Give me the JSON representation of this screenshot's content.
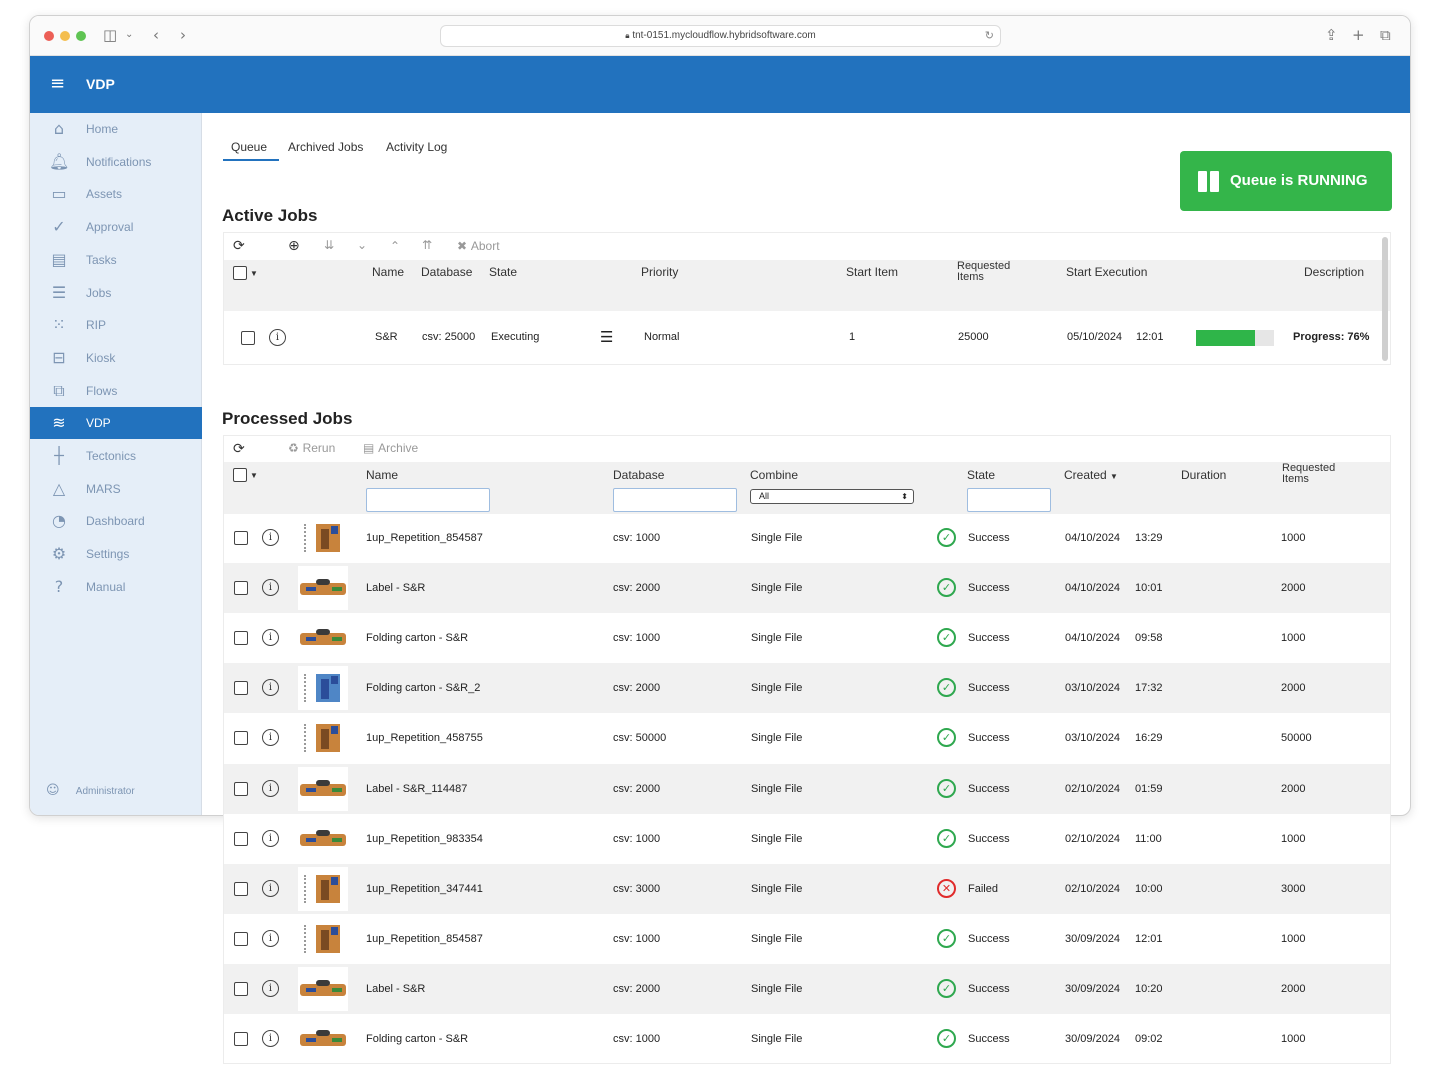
{
  "browser": {
    "url": "tnt-0151.mycloudflow.hybridsoftware.com"
  },
  "app": {
    "title": "VDP"
  },
  "sidebar": {
    "items": [
      {
        "label": "Home",
        "icon": "home-icon"
      },
      {
        "label": "Notifications",
        "icon": "bell-icon"
      },
      {
        "label": "Assets",
        "icon": "drive-icon"
      },
      {
        "label": "Approval",
        "icon": "check-circle-icon"
      },
      {
        "label": "Tasks",
        "icon": "clipboard-icon"
      },
      {
        "label": "Jobs",
        "icon": "list-icon"
      },
      {
        "label": "RIP",
        "icon": "dots-grid-icon"
      },
      {
        "label": "Kiosk",
        "icon": "kiosk-icon"
      },
      {
        "label": "Flows",
        "icon": "flow-icon"
      },
      {
        "label": "VDP",
        "icon": "layers-icon"
      },
      {
        "label": "Tectonics",
        "icon": "tectonics-icon"
      },
      {
        "label": "MARS",
        "icon": "triangle-icon"
      },
      {
        "label": "Dashboard",
        "icon": "pie-icon"
      },
      {
        "label": "Settings",
        "icon": "gear-icon"
      },
      {
        "label": "Manual",
        "icon": "help-icon"
      }
    ],
    "active": "VDP",
    "user": "Administrator"
  },
  "tabs": [
    "Queue",
    "Archived Jobs",
    "Activity Log"
  ],
  "queue_button": "Queue is RUNNING",
  "active_jobs": {
    "title": "Active Jobs",
    "abort_label": "Abort",
    "columns": {
      "name": "Name",
      "database": "Database",
      "state": "State",
      "priority": "Priority",
      "start_item": "Start Item",
      "requested_items": "Requested Items",
      "start_execution": "Start Execution",
      "description": "Description"
    },
    "row": {
      "name": "S&R",
      "database": "csv: 25000",
      "state": "Executing",
      "priority": "Normal",
      "start_item": "1",
      "requested_items": "25000",
      "start_date": "05/10/2024",
      "start_time": "12:01",
      "progress": 76,
      "description": "Progress: 76%"
    }
  },
  "processed_jobs": {
    "title": "Processed Jobs",
    "rerun_label": "Rerun",
    "archive_label": "Archive",
    "columns": {
      "name": "Name",
      "database": "Database",
      "combine": "Combine",
      "state": "State",
      "created": "Created",
      "duration": "Duration",
      "requested_items": "Requested Items"
    },
    "combine_filter": "All",
    "rows": [
      {
        "name": "1up_Repetition_854587",
        "database": "csv: 1000",
        "combine": "Single File",
        "state": "Success",
        "date": "04/10/2024",
        "time": "13:29",
        "items": "1000",
        "thumb": "sheet"
      },
      {
        "name": "Label - S&R",
        "database": "csv: 2000",
        "combine": "Single File",
        "state": "Success",
        "date": "04/10/2024",
        "time": "10:01",
        "items": "2000",
        "thumb": "label"
      },
      {
        "name": "Folding carton - S&R",
        "database": "csv: 1000",
        "combine": "Single File",
        "state": "Success",
        "date": "04/10/2024",
        "time": "09:58",
        "items": "1000",
        "thumb": "label"
      },
      {
        "name": "Folding carton - S&R_2",
        "database": "csv: 2000",
        "combine": "Single File",
        "state": "Success",
        "date": "03/10/2024",
        "time": "17:32",
        "items": "2000",
        "thumb": "blue"
      },
      {
        "name": "1up_Repetition_458755",
        "database": "csv: 50000",
        "combine": "Single File",
        "state": "Success",
        "date": "03/10/2024",
        "time": "16:29",
        "items": "50000",
        "thumb": "sheet"
      },
      {
        "name": "Label - S&R_114487",
        "database": "csv: 2000",
        "combine": "Single File",
        "state": "Success",
        "date": "02/10/2024",
        "time": "01:59",
        "items": "2000",
        "thumb": "label"
      },
      {
        "name": "1up_Repetition_983354",
        "database": "csv: 1000",
        "combine": "Single File",
        "state": "Success",
        "date": "02/10/2024",
        "time": "11:00",
        "items": "1000",
        "thumb": "label"
      },
      {
        "name": "1up_Repetition_347441",
        "database": "csv: 3000",
        "combine": "Single File",
        "state": "Failed",
        "date": "02/10/2024",
        "time": "10:00",
        "items": "3000",
        "thumb": "sheet"
      },
      {
        "name": "1up_Repetition_854587",
        "database": "csv: 1000",
        "combine": "Single File",
        "state": "Success",
        "date": "30/09/2024",
        "time": "12:01",
        "items": "1000",
        "thumb": "sheet"
      },
      {
        "name": "Label - S&R",
        "database": "csv: 2000",
        "combine": "Single File",
        "state": "Success",
        "date": "30/09/2024",
        "time": "10:20",
        "items": "2000",
        "thumb": "label"
      },
      {
        "name": "Folding carton - S&R",
        "database": "csv: 1000",
        "combine": "Single File",
        "state": "Success",
        "date": "30/09/2024",
        "time": "09:02",
        "items": "1000",
        "thumb": "label"
      }
    ]
  },
  "colors": {
    "brand": "#2272be",
    "running": "#34b54a",
    "success": "#2fa84f",
    "failed": "#e02b2b"
  }
}
